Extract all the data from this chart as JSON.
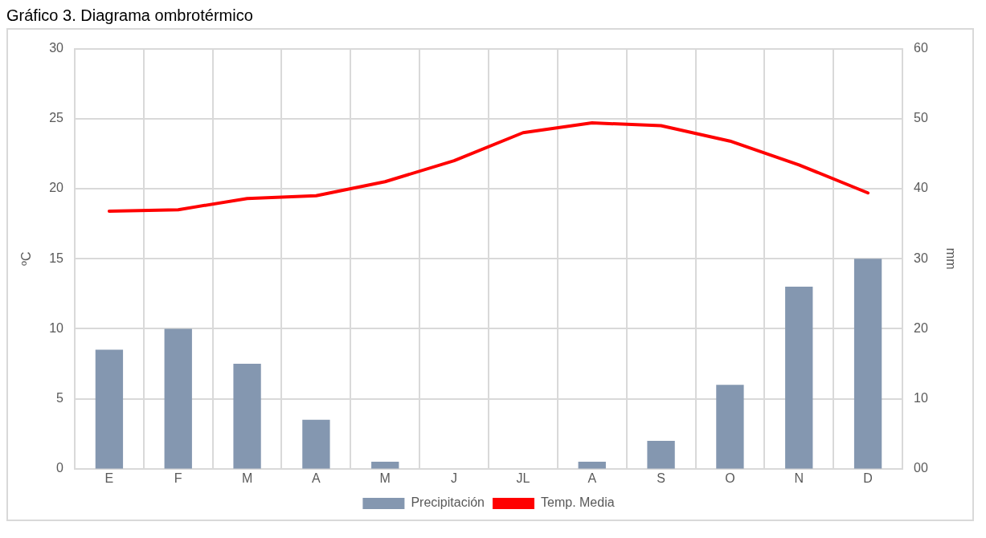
{
  "chart_data": {
    "type": "bar",
    "title": "Gráfico 3. Diagrama ombrotérmico",
    "ylabel": "ºC",
    "y2label": "mm",
    "categories": [
      "E",
      "F",
      "M",
      "A",
      "M",
      "J",
      "JL",
      "A",
      "S",
      "O",
      "N",
      "D"
    ],
    "series": [
      {
        "name": "Precipitación",
        "axis": "y2",
        "color": "#8497b0",
        "values": [
          17,
          20,
          15,
          7,
          1,
          0,
          0,
          1,
          4,
          12,
          26,
          30
        ]
      },
      {
        "name": "Temp. Media",
        "type": "line",
        "axis": "y",
        "color": "#ff0000",
        "values": [
          18.4,
          18.5,
          19.3,
          19.5,
          20.5,
          22.0,
          24.0,
          24.7,
          24.5,
          23.4,
          21.7,
          19.7
        ]
      }
    ],
    "ylim": [
      0,
      30
    ],
    "yticks": [
      0,
      5,
      10,
      15,
      20,
      25,
      30
    ],
    "y2lim": [
      0,
      60
    ],
    "y2ticks": [
      {
        "value": 0,
        "label": "00"
      },
      10,
      20,
      30,
      40,
      50,
      60
    ],
    "grid": true,
    "legend": "bottom",
    "marker": "none",
    "line_style": "solid"
  }
}
